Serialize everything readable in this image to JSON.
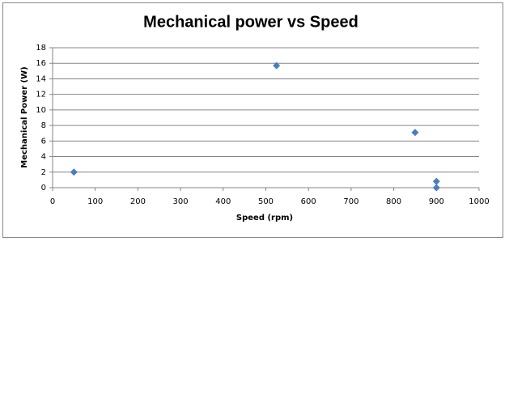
{
  "chart_data": {
    "type": "scatter",
    "title": "Mechanical power vs Speed",
    "x_label": "Speed (rpm)",
    "y_label": "Mechanical  Power (W)",
    "series": [
      {
        "color": "#4a7ebb",
        "x": [
          50,
          525,
          850,
          900,
          900
        ],
        "values": [
          2,
          15.7,
          7.1,
          0.8,
          0
        ]
      }
    ],
    "xlim": [
      0,
      1000
    ],
    "xticks": [
      0,
      100,
      200,
      300,
      400,
      500,
      600,
      700,
      800,
      900,
      1000
    ],
    "ylim": [
      0,
      18
    ],
    "yticks": [
      0,
      2,
      4,
      6,
      8,
      10,
      12,
      14,
      16,
      18
    ],
    "grid": true
  }
}
